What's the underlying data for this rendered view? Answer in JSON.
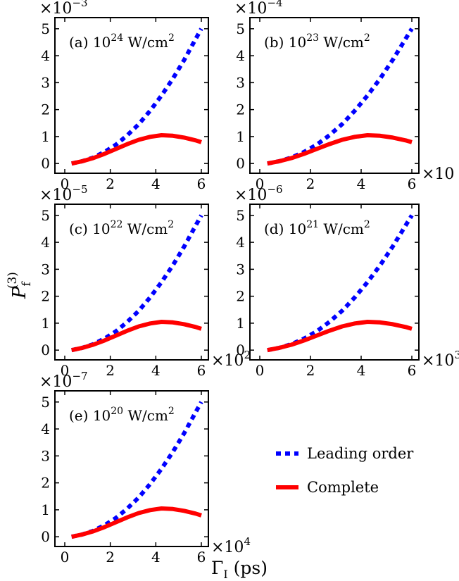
{
  "figure": {
    "ylabel_main": "P",
    "ylabel_sub": "f",
    "ylabel_sup": "(3)",
    "xlabel_main": "Γ",
    "xlabel_sub": "I",
    "xlabel_unit": "(ps)"
  },
  "legend": {
    "entries": [
      {
        "label": "Leading order",
        "color": "#0000ff",
        "style": "dashed"
      },
      {
        "label": "Complete",
        "color": "#ff0000",
        "style": "solid"
      }
    ]
  },
  "chart_data": [
    {
      "type": "line",
      "panel_label": "(a)",
      "intensity_base": "10",
      "intensity_exp": "24",
      "intensity_unit": "W/cm",
      "intensity_unit_exp": "2",
      "y_multiplier_base": "×10",
      "y_multiplier_exp": "−3",
      "x_multiplier_base": "",
      "x_multiplier_exp": "",
      "xlim": [
        0,
        6
      ],
      "ylim": [
        -0.1,
        5.1
      ],
      "xticks": [
        0,
        2,
        4,
        6
      ],
      "yticks": [
        0,
        1,
        2,
        3,
        4,
        5
      ],
      "series": [
        {
          "name": "Leading order",
          "x": [
            0.3,
            0.75,
            1.25,
            1.75,
            2.25,
            2.75,
            3.25,
            3.75,
            4.25,
            4.75,
            5.25,
            5.75,
            6
          ],
          "y": [
            0.0,
            0.08,
            0.22,
            0.43,
            0.7,
            1.05,
            1.46,
            1.96,
            2.52,
            3.15,
            3.85,
            4.62,
            5.0
          ]
        },
        {
          "name": "Complete",
          "x": [
            0.3,
            0.75,
            1.25,
            1.75,
            2.25,
            2.75,
            3.25,
            3.75,
            4.25,
            4.75,
            5.25,
            5.75,
            6
          ],
          "y": [
            0.0,
            0.08,
            0.2,
            0.36,
            0.54,
            0.72,
            0.88,
            0.99,
            1.05,
            1.03,
            0.96,
            0.86,
            0.79
          ]
        }
      ]
    },
    {
      "type": "line",
      "panel_label": "(b)",
      "intensity_base": "10",
      "intensity_exp": "23",
      "intensity_unit": "W/cm",
      "intensity_unit_exp": "2",
      "y_multiplier_base": "×10",
      "y_multiplier_exp": "−4",
      "x_multiplier_base": "×10",
      "x_multiplier_exp": "",
      "xlim": [
        0,
        6
      ],
      "ylim": [
        -0.1,
        5.1
      ],
      "xticks": [
        0,
        2,
        4,
        6
      ],
      "yticks": [
        0,
        1,
        2,
        3,
        4,
        5
      ],
      "series": [
        {
          "name": "Leading order",
          "x": [
            0.3,
            0.75,
            1.25,
            1.75,
            2.25,
            2.75,
            3.25,
            3.75,
            4.25,
            4.75,
            5.25,
            5.75,
            6
          ],
          "y": [
            0.0,
            0.08,
            0.22,
            0.43,
            0.7,
            1.05,
            1.46,
            1.96,
            2.52,
            3.15,
            3.85,
            4.62,
            5.0
          ]
        },
        {
          "name": "Complete",
          "x": [
            0.3,
            0.75,
            1.25,
            1.75,
            2.25,
            2.75,
            3.25,
            3.75,
            4.25,
            4.75,
            5.25,
            5.75,
            6
          ],
          "y": [
            0.0,
            0.08,
            0.2,
            0.36,
            0.54,
            0.72,
            0.88,
            0.99,
            1.05,
            1.03,
            0.96,
            0.86,
            0.79
          ]
        }
      ]
    },
    {
      "type": "line",
      "panel_label": "(c)",
      "intensity_base": "10",
      "intensity_exp": "22",
      "intensity_unit": "W/cm",
      "intensity_unit_exp": "2",
      "y_multiplier_base": "×10",
      "y_multiplier_exp": "−5",
      "x_multiplier_base": "×10",
      "x_multiplier_exp": "2",
      "xlim": [
        0,
        6
      ],
      "ylim": [
        -0.1,
        5.1
      ],
      "xticks": [
        0,
        2,
        4,
        6
      ],
      "yticks": [
        0,
        1,
        2,
        3,
        4,
        5
      ],
      "series": [
        {
          "name": "Leading order",
          "x": [
            0.3,
            0.75,
            1.25,
            1.75,
            2.25,
            2.75,
            3.25,
            3.75,
            4.25,
            4.75,
            5.25,
            5.75,
            6
          ],
          "y": [
            0.0,
            0.08,
            0.22,
            0.43,
            0.7,
            1.05,
            1.46,
            1.96,
            2.52,
            3.15,
            3.85,
            4.62,
            5.0
          ]
        },
        {
          "name": "Complete",
          "x": [
            0.3,
            0.75,
            1.25,
            1.75,
            2.25,
            2.75,
            3.25,
            3.75,
            4.25,
            4.75,
            5.25,
            5.75,
            6
          ],
          "y": [
            0.0,
            0.08,
            0.2,
            0.36,
            0.54,
            0.72,
            0.88,
            0.99,
            1.05,
            1.03,
            0.96,
            0.86,
            0.79
          ]
        }
      ]
    },
    {
      "type": "line",
      "panel_label": "(d)",
      "intensity_base": "10",
      "intensity_exp": "21",
      "intensity_unit": "W/cm",
      "intensity_unit_exp": "2",
      "y_multiplier_base": "×10",
      "y_multiplier_exp": "−6",
      "x_multiplier_base": "×10",
      "x_multiplier_exp": "3",
      "xlim": [
        0,
        6
      ],
      "ylim": [
        -0.1,
        5.1
      ],
      "xticks": [
        0,
        2,
        4,
        6
      ],
      "yticks": [
        0,
        1,
        2,
        3,
        4,
        5
      ],
      "series": [
        {
          "name": "Leading order",
          "x": [
            0.3,
            0.75,
            1.25,
            1.75,
            2.25,
            2.75,
            3.25,
            3.75,
            4.25,
            4.75,
            5.25,
            5.75,
            6
          ],
          "y": [
            0.0,
            0.08,
            0.22,
            0.43,
            0.7,
            1.05,
            1.46,
            1.96,
            2.52,
            3.15,
            3.85,
            4.62,
            5.0
          ]
        },
        {
          "name": "Complete",
          "x": [
            0.3,
            0.75,
            1.25,
            1.75,
            2.25,
            2.75,
            3.25,
            3.75,
            4.25,
            4.75,
            5.25,
            5.75,
            6
          ],
          "y": [
            0.0,
            0.08,
            0.2,
            0.36,
            0.54,
            0.72,
            0.88,
            0.99,
            1.05,
            1.03,
            0.96,
            0.86,
            0.79
          ]
        }
      ]
    },
    {
      "type": "line",
      "panel_label": "(e)",
      "intensity_base": "10",
      "intensity_exp": "20",
      "intensity_unit": "W/cm",
      "intensity_unit_exp": "2",
      "y_multiplier_base": "×10",
      "y_multiplier_exp": "−7",
      "x_multiplier_base": "×10",
      "x_multiplier_exp": "4",
      "xlim": [
        0,
        6
      ],
      "ylim": [
        -0.1,
        5.1
      ],
      "xticks": [
        0,
        2,
        4,
        6
      ],
      "yticks": [
        0,
        1,
        2,
        3,
        4,
        5
      ],
      "series": [
        {
          "name": "Leading order",
          "x": [
            0.3,
            0.75,
            1.25,
            1.75,
            2.25,
            2.75,
            3.25,
            3.75,
            4.25,
            4.75,
            5.25,
            5.75,
            6
          ],
          "y": [
            0.0,
            0.08,
            0.22,
            0.43,
            0.7,
            1.05,
            1.46,
            1.96,
            2.52,
            3.15,
            3.85,
            4.62,
            5.0
          ]
        },
        {
          "name": "Complete",
          "x": [
            0.3,
            0.75,
            1.25,
            1.75,
            2.25,
            2.75,
            3.25,
            3.75,
            4.25,
            4.75,
            5.25,
            5.75,
            6
          ],
          "y": [
            0.0,
            0.08,
            0.2,
            0.36,
            0.54,
            0.72,
            0.88,
            0.99,
            1.05,
            1.03,
            0.96,
            0.86,
            0.79
          ]
        }
      ]
    }
  ]
}
